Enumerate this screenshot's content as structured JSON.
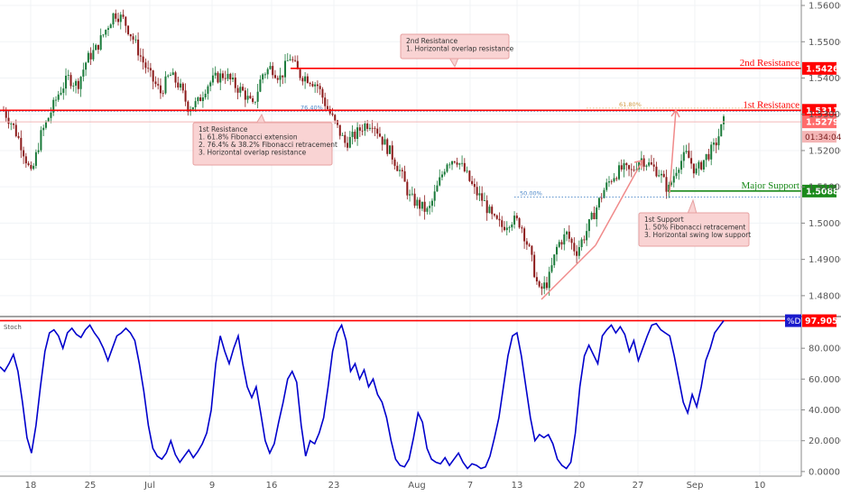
{
  "chart_data": [
    {
      "type": "candlestick",
      "name": "price",
      "ylim": [
        1.4745,
        1.5615
      ],
      "y_ticks": [
        "1.56000",
        "1.55000",
        "1.54000",
        "1.53000",
        "1.52000",
        "1.51000",
        "1.50000",
        "1.49000",
        "1.48000"
      ],
      "x_tick_labels": [
        "18",
        "25",
        "Jul",
        "9",
        "16",
        "23",
        "Aug",
        "7",
        "13",
        "20",
        "27",
        "Sep",
        "10"
      ],
      "price_path": [
        1.531,
        1.527,
        1.521,
        1.513,
        1.524,
        1.53,
        1.536,
        1.54,
        1.538,
        1.545,
        1.548,
        1.553,
        1.558,
        1.556,
        1.551,
        1.545,
        1.54,
        1.536,
        1.541,
        1.538,
        1.532,
        1.533,
        1.538,
        1.54,
        1.541,
        1.538,
        1.536,
        1.532,
        1.541,
        1.543,
        1.54,
        1.546,
        1.541,
        1.54,
        1.538,
        1.532,
        1.527,
        1.522,
        1.524,
        1.527,
        1.528,
        1.523,
        1.519,
        1.514,
        1.507,
        1.505,
        1.503,
        1.51,
        1.517,
        1.518,
        1.514,
        1.509,
        1.506,
        1.501,
        1.499,
        1.501,
        1.5,
        1.492,
        1.481,
        1.484,
        1.494,
        1.497,
        1.492,
        1.497,
        1.503,
        1.509,
        1.513,
        1.515,
        1.514,
        1.518,
        1.516,
        1.514,
        1.509,
        1.516,
        1.519,
        1.514,
        1.518,
        1.521,
        1.5279
      ],
      "current_price": "1.52791",
      "countdown": "01:34:04",
      "levels": [
        {
          "name": "2nd Resistance",
          "value": 1.54265,
          "label": "1.54265",
          "color": "#ff0000"
        },
        {
          "name": "1st Resistance",
          "value": 1.5311,
          "label": "1.53110",
          "color": "#ff0000"
        },
        {
          "name": "Major Support",
          "value": 1.50884,
          "label": "1.50884",
          "color": "#1a8a1a"
        }
      ],
      "fib_labels": {
        "left": "76.40%",
        "right": "61.80%",
        "mid": "50.00%"
      },
      "notes": {
        "second_resistance": [
          "2nd Resistance",
          "1. Horizontal overlap resistance"
        ],
        "first_resistance": [
          "1st Resistance",
          "1. 61.8% Fibonacci extension",
          "2. 76.4% & 38.2% Fibonacci retracement",
          "3. Horizontal overlap resistance"
        ],
        "first_support": [
          "1st Support",
          "1. 50% Fibonacci retracement",
          "3. Horizontal swing low support"
        ]
      },
      "colors": {
        "up": "#1a7a3a",
        "down": "#8b1a1a",
        "resistance": "#ff0000",
        "support": "#1a8a1a",
        "fib": "#4a86c8",
        "arrow": "#f08a8a"
      }
    },
    {
      "type": "line",
      "name": "Stoch",
      "ylim": [
        -3,
        100
      ],
      "y_ticks": [
        "80.0000",
        "60.0000",
        "40.0000",
        "20.0000",
        "0.0000"
      ],
      "series_label": "%D",
      "current_value": "97.9050",
      "values": [
        68,
        65,
        70,
        76,
        65,
        45,
        22,
        12,
        30,
        55,
        78,
        90,
        92,
        88,
        80,
        90,
        93,
        89,
        87,
        92,
        95,
        90,
        86,
        80,
        72,
        80,
        88,
        90,
        93,
        90,
        85,
        70,
        52,
        30,
        15,
        10,
        8,
        12,
        20,
        11,
        6,
        10,
        14,
        9,
        13,
        18,
        25,
        40,
        70,
        88,
        78,
        70,
        80,
        88,
        70,
        55,
        48,
        55,
        38,
        20,
        12,
        18,
        32,
        45,
        60,
        65,
        58,
        30,
        10,
        20,
        18,
        25,
        35,
        55,
        78,
        90,
        95,
        85,
        65,
        70,
        60,
        66,
        55,
        60,
        50,
        45,
        35,
        20,
        8,
        4,
        3,
        8,
        22,
        38,
        32,
        15,
        8,
        6,
        5,
        9,
        4,
        8,
        12,
        6,
        2,
        5,
        4,
        2,
        3,
        10,
        22,
        35,
        55,
        75,
        88,
        90,
        75,
        55,
        35,
        20,
        24,
        22,
        24,
        18,
        8,
        4,
        2,
        6,
        25,
        55,
        75,
        82,
        76,
        70,
        88,
        92,
        95,
        90,
        94,
        89,
        78,
        85,
        72,
        80,
        88,
        95,
        96,
        92,
        90,
        88,
        75,
        60,
        45,
        38,
        50,
        42,
        55,
        72,
        80,
        90,
        94,
        97.905
      ],
      "color": "#0000cc",
      "hline": 97.905,
      "hline_color": "#ff0000"
    }
  ]
}
